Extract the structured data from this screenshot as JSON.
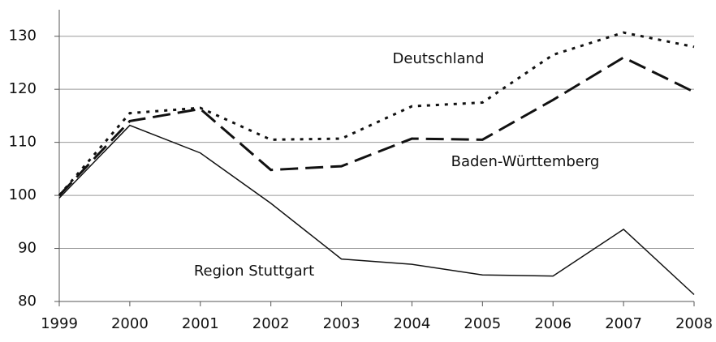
{
  "chart_data": {
    "type": "line",
    "x": [
      1999,
      2000,
      2001,
      2002,
      2003,
      2004,
      2005,
      2006,
      2007,
      2008
    ],
    "xlim": [
      1999,
      2008
    ],
    "xticks": [
      1999,
      2000,
      2001,
      2002,
      2003,
      2004,
      2005,
      2006,
      2007,
      2008
    ],
    "ylim": [
      80,
      135
    ],
    "yticks": [
      80,
      90,
      100,
      110,
      120,
      130
    ],
    "grid": true,
    "series": [
      {
        "name": "Deutschland",
        "color": "#111111",
        "style": "dotted",
        "values": [
          100,
          115.5,
          116.5,
          110.5,
          110.7,
          116.8,
          117.5,
          126.5,
          130.7,
          128
        ]
      },
      {
        "name": "Baden-Württemberg",
        "color": "#111111",
        "style": "dashed",
        "values": [
          100,
          114,
          116.3,
          104.8,
          105.5,
          110.7,
          110.5,
          118,
          126,
          119.5
        ]
      },
      {
        "name": "Region Stuttgart",
        "color": "#111111",
        "style": "solid",
        "values": [
          99.5,
          113.2,
          108,
          98.5,
          88,
          87,
          85,
          84.8,
          93.6,
          81.3
        ]
      }
    ]
  }
}
